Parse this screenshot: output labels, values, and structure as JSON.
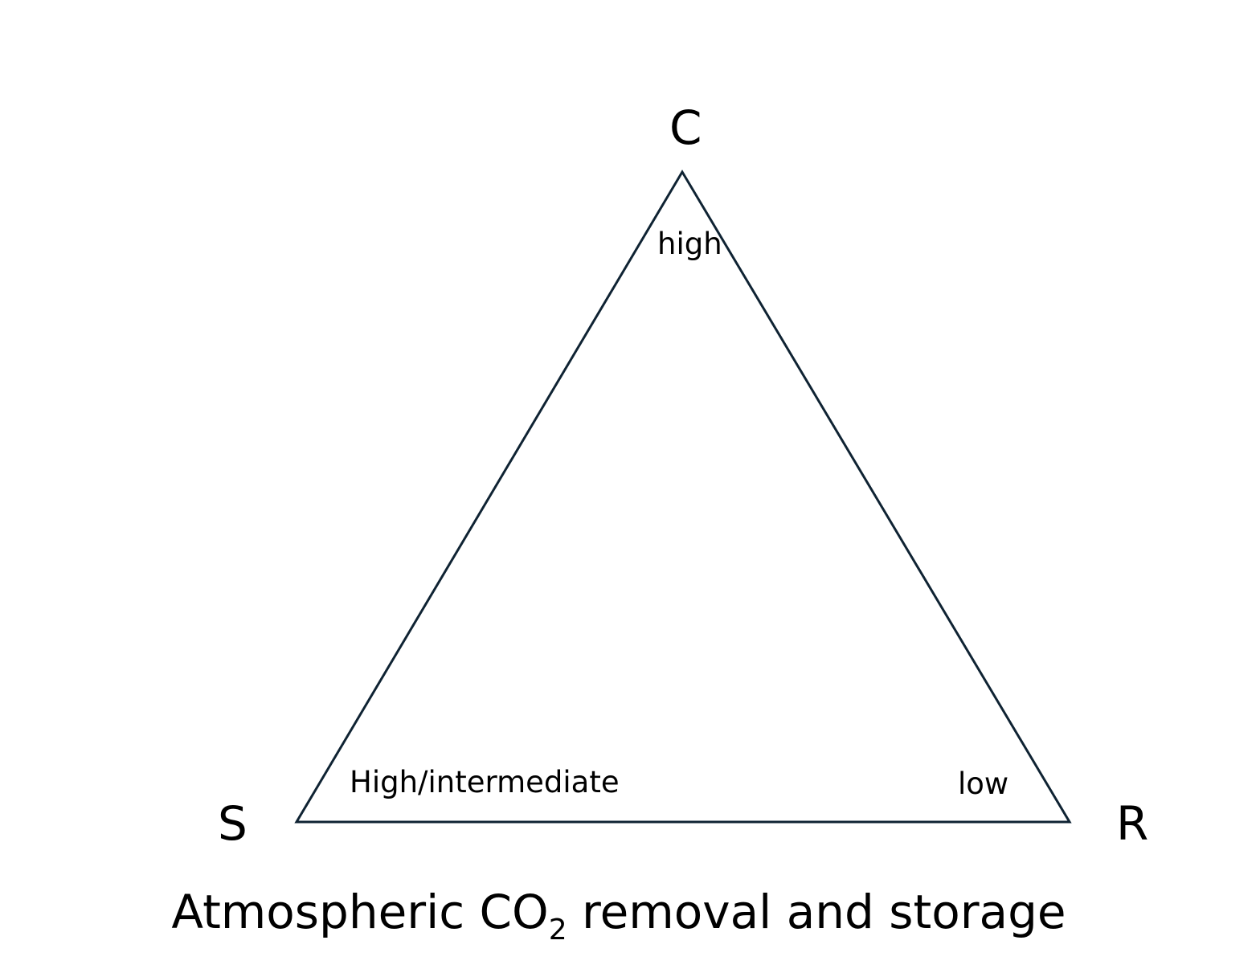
{
  "vertices": {
    "top": "C",
    "left": "S",
    "right": "R"
  },
  "levels": {
    "top": "high",
    "left": "High/intermediate",
    "right": "low"
  },
  "caption": {
    "prefix": "Atmospheric CO",
    "subscript": "2",
    "suffix": " removal and storage"
  },
  "colors": {
    "outline": "#0f2333",
    "text": "#000000"
  }
}
